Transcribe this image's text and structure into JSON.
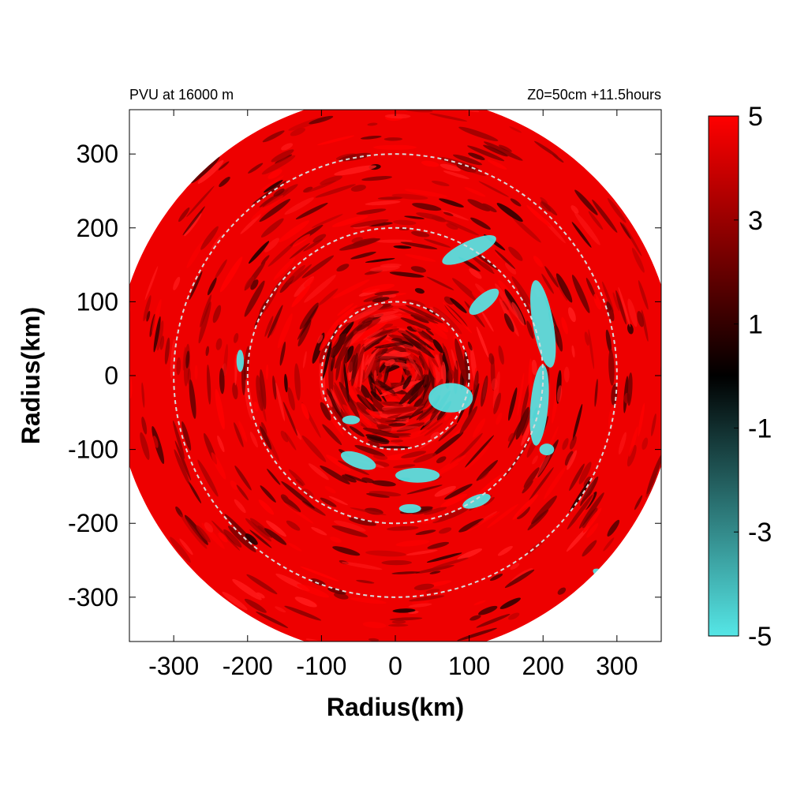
{
  "chart_data": {
    "type": "heatmap",
    "title_left": "PVU at 16000 m",
    "title_right": "Z0=50cm  +11.5hours",
    "xlabel": "Radius(km)",
    "ylabel": "Radius(km)",
    "xlim": [
      -360,
      360
    ],
    "ylim": [
      -360,
      360
    ],
    "xticks": [
      -300,
      -200,
      -100,
      0,
      100,
      200,
      300
    ],
    "yticks": [
      -300,
      -200,
      -100,
      0,
      100,
      200,
      300
    ],
    "domain_radius_km": 380,
    "reference_circles_km": [
      100,
      200,
      300
    ],
    "colorbar": {
      "range": [
        -5,
        5
      ],
      "ticks": [
        5,
        3,
        1,
        -1,
        -3,
        -5
      ],
      "colors": [
        {
          "value": -5,
          "color": "#55e6e6"
        },
        {
          "value": 0,
          "color": "#000000"
        },
        {
          "value": 5,
          "color": "#ff0000"
        }
      ]
    },
    "negative_pv_regions": [
      {
        "x": 100,
        "y": 170,
        "rx": 40,
        "ry": 12,
        "rot": -25
      },
      {
        "x": 200,
        "y": 70,
        "rx": 14,
        "ry": 60,
        "rot": -10
      },
      {
        "x": 195,
        "y": -40,
        "rx": 12,
        "ry": 55,
        "rot": 5
      },
      {
        "x": 120,
        "y": 100,
        "rx": 25,
        "ry": 10,
        "rot": -40
      },
      {
        "x": 75,
        "y": -30,
        "rx": 30,
        "ry": 20,
        "rot": 0
      },
      {
        "x": 30,
        "y": -135,
        "rx": 30,
        "ry": 10,
        "rot": 0
      },
      {
        "x": -50,
        "y": -115,
        "rx": 25,
        "ry": 10,
        "rot": 20
      },
      {
        "x": 110,
        "y": -170,
        "rx": 20,
        "ry": 8,
        "rot": -20
      },
      {
        "x": 205,
        "y": -100,
        "rx": 10,
        "ry": 8,
        "rot": 0
      },
      {
        "x": -210,
        "y": 20,
        "rx": 5,
        "ry": 15,
        "rot": 0
      },
      {
        "x": 20,
        "y": -180,
        "rx": 15,
        "ry": 6,
        "rot": 0
      },
      {
        "x": -60,
        "y": -60,
        "rx": 12,
        "ry": 6,
        "rot": 0
      },
      {
        "x": 280,
        "y": -270,
        "rx": 14,
        "ry": 6,
        "rot": 30
      }
    ]
  }
}
